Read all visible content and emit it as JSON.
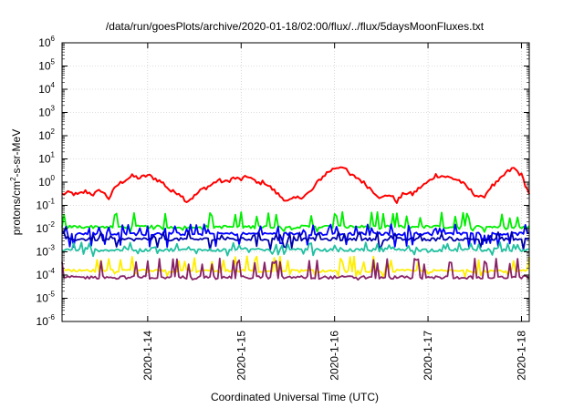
{
  "chart_data": {
    "type": "line",
    "title": "/data/run/goesPlots/archive/2020-01-18/02:00/flux/../flux/5daysMoonFluxes.txt",
    "xlabel": "Coordinated Universal Time (UTC)",
    "ylabel": "protons/cm²-s-sr-MeV",
    "ylabel_parts": {
      "prefix": "protons/cm",
      "sup": "2",
      "suffix": "-s-sr-MeV"
    },
    "y_scale": "log",
    "ylim": [
      1e-06,
      1000000.0
    ],
    "y_ticks": [
      {
        "base": "10",
        "exp": "-6"
      },
      {
        "base": "10",
        "exp": "-5"
      },
      {
        "base": "10",
        "exp": "-4"
      },
      {
        "base": "10",
        "exp": "-3"
      },
      {
        "base": "10",
        "exp": "-2"
      },
      {
        "base": "10",
        "exp": "-1"
      },
      {
        "base": "10",
        "exp": "0"
      },
      {
        "base": "10",
        "exp": "1"
      },
      {
        "base": "10",
        "exp": "2"
      },
      {
        "base": "10",
        "exp": "3"
      },
      {
        "base": "10",
        "exp": "4"
      },
      {
        "base": "10",
        "exp": "5"
      },
      {
        "base": "10",
        "exp": "6"
      }
    ],
    "xlim": [
      "2020-01-13 02:00",
      "2020-01-18 02:00"
    ],
    "x_ticks": [
      "2020-1-14",
      "2020-1-15",
      "2020-1-16",
      "2020-1-17",
      "2020-1-18"
    ],
    "grid": true,
    "legend": "none",
    "series": [
      {
        "color": "#ff0000",
        "description": "highest flux channel",
        "x_hours": [
          0,
          2,
          4,
          6,
          8,
          10,
          12,
          14,
          16,
          18,
          20,
          22,
          24,
          26,
          28,
          30,
          32,
          34,
          36,
          38,
          40,
          42,
          44,
          46,
          48,
          50,
          52,
          54,
          56,
          58,
          60,
          62,
          64,
          66,
          68,
          70,
          72,
          74,
          76,
          78,
          80,
          82,
          84,
          86,
          88,
          90,
          92,
          94,
          96,
          98,
          100,
          102,
          104,
          106,
          108,
          110,
          112,
          114,
          116,
          118,
          120
        ],
        "values": [
          0.3,
          0.35,
          0.28,
          0.4,
          0.3,
          0.45,
          0.2,
          0.7,
          1.2,
          1.8,
          1.5,
          2.0,
          1.4,
          0.9,
          0.4,
          0.35,
          0.15,
          0.25,
          0.5,
          0.7,
          1.2,
          1.0,
          1.5,
          1.3,
          1.8,
          0.9,
          1.0,
          0.5,
          0.25,
          0.15,
          0.2,
          0.25,
          0.4,
          1.2,
          2.5,
          4.0,
          5.0,
          2.0,
          1.5,
          0.8,
          0.4,
          0.2,
          0.3,
          0.15,
          0.35,
          0.3,
          0.6,
          1.0,
          2.0,
          1.8,
          1.5,
          1.2,
          0.6,
          0.3,
          0.2,
          0.6,
          1.0,
          2.5,
          4.0,
          2.0,
          0.3
        ]
      },
      {
        "color": "#00ee00",
        "description": "green channel",
        "base": 0.012,
        "spike": 0.04,
        "dip": 0.008
      },
      {
        "color": "#0000ff",
        "description": "blue channel (upper)",
        "base": 0.006,
        "spike": 0.012,
        "dip": 0.002
      },
      {
        "color": "#0000aa",
        "description": "blue channel (lower)",
        "base": 0.0035,
        "spike": 0.006,
        "dip": 0.0015
      },
      {
        "color": "#20c0a0",
        "description": "teal channel",
        "base": 0.0012,
        "spike": 0.002,
        "dip": 0.0008
      },
      {
        "color": "#ffee00",
        "description": "yellow channel",
        "base": 0.00015,
        "spike": 0.0005,
        "dip": 0.0001
      },
      {
        "color": "#882266",
        "description": "purple channel",
        "base": 8e-05,
        "spike": 0.0004,
        "dip": 6e-05
      }
    ]
  }
}
